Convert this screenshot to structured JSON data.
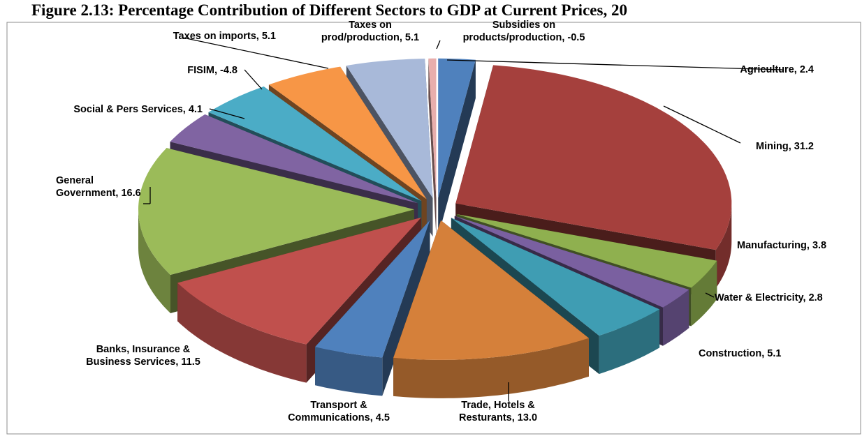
{
  "chart_data": {
    "type": "pie3d",
    "title": "Figure 2.13: Percentage Contribution of Different Sectors to GDP at Current Prices, 20",
    "categories": [
      "Agriculture",
      "Mining",
      "Manufacturing",
      "Water & Electricity",
      "Construction",
      "Trade, Hotels & Resturants",
      "Transport & Communications",
      "Banks, Insurance & Business Services",
      "General Government",
      "Social & Pers Services",
      "FISIM",
      "Taxes on imports",
      "Taxes on prod/production",
      "Subsidies on products/production"
    ],
    "values": [
      2.4,
      31.2,
      3.8,
      2.8,
      5.1,
      13.0,
      4.5,
      11.5,
      16.6,
      4.1,
      -4.8,
      5.1,
      5.1,
      -0.5
    ],
    "value_labels": [
      "2.4",
      "31.2",
      "3.8",
      "2.8",
      "5.1",
      "13.0",
      "4.5",
      "11.5",
      "16.6",
      "4.1",
      "-4.8",
      "5.1",
      "5.1",
      "-0.5"
    ],
    "colors": [
      "#4f81bd",
      "#a5403d",
      "#8fb04f",
      "#7a60a0",
      "#3f9db3",
      "#d5803a",
      "#4f81bd",
      "#c0504d",
      "#9bbb59",
      "#8064a2",
      "#4bacc6",
      "#f79646",
      "#a8b9d9",
      "#e8aeac"
    ]
  }
}
